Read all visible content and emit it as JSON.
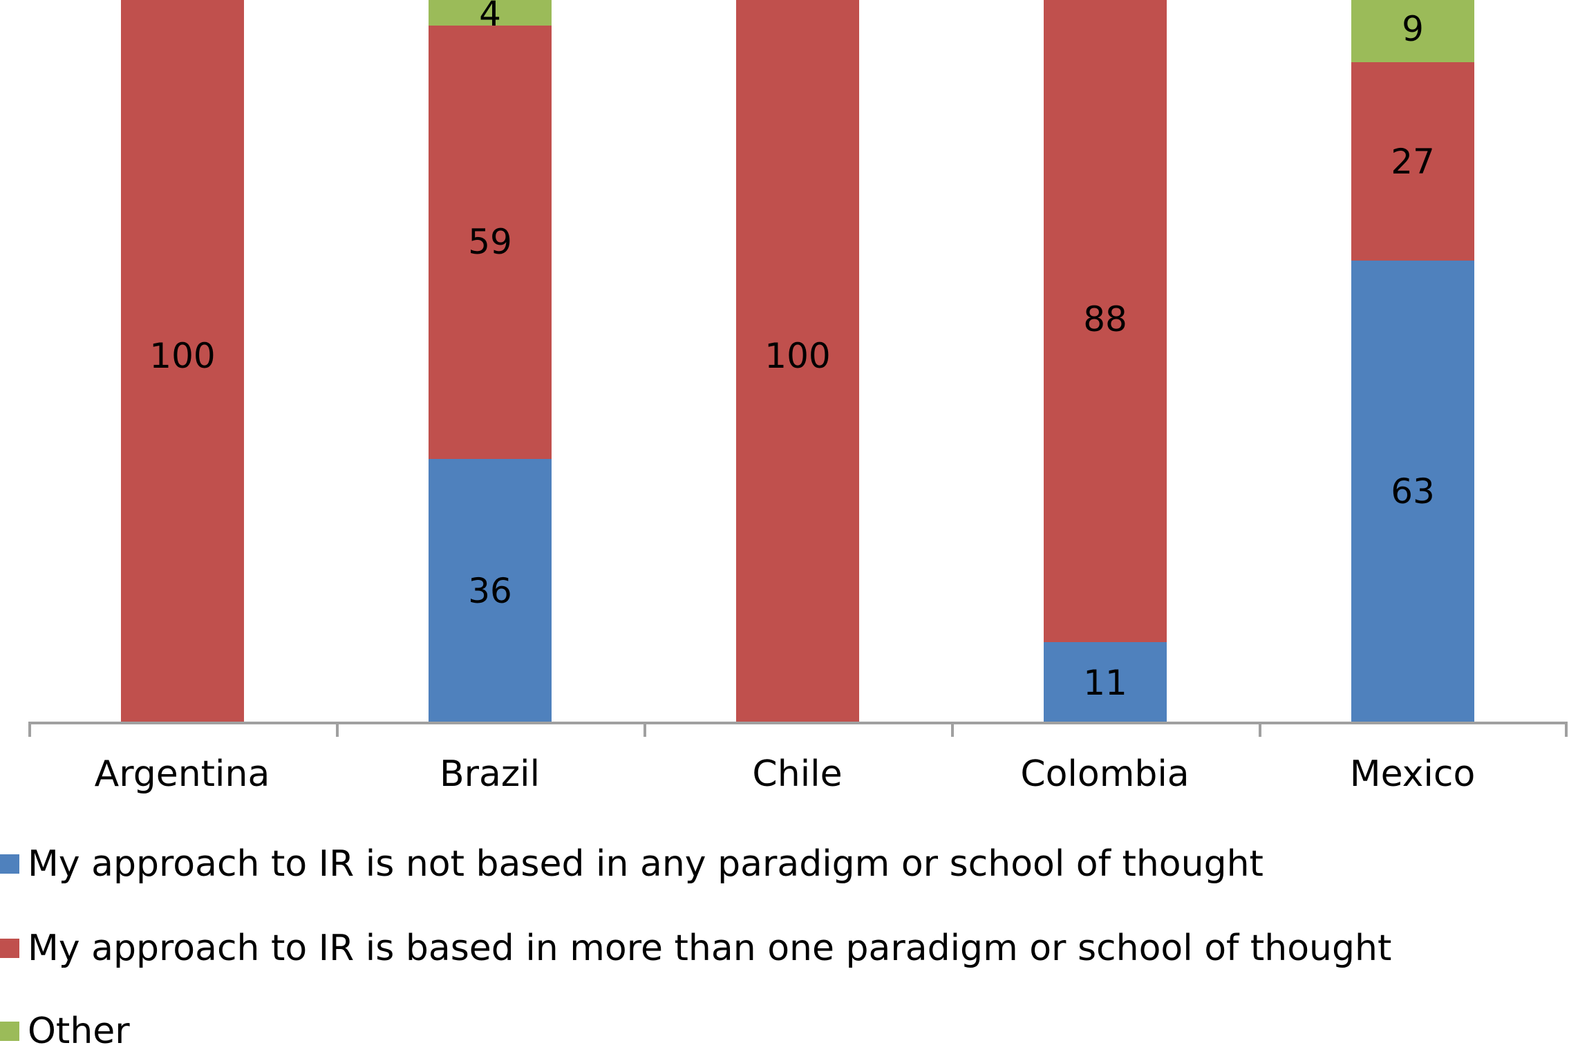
{
  "chart_data": {
    "type": "bar",
    "stacked": true,
    "title": "",
    "xlabel": "",
    "ylabel": "",
    "ylim": [
      0,
      100
    ],
    "grid": false,
    "legend_position": "bottom",
    "categories": [
      "Argentina",
      "Brazil",
      "Chile",
      "Colombia",
      "Mexico"
    ],
    "series": [
      {
        "name": "My approach to IR is not based in any paradigm or school of thought",
        "color": "#4F81BD",
        "values": [
          0,
          36,
          0,
          11,
          63
        ]
      },
      {
        "name": "My approach to IR is based in more than one paradigm or school of thought",
        "color": "#C0504D",
        "values": [
          100,
          59,
          100,
          88,
          27
        ]
      },
      {
        "name": "Other",
        "color": "#9BBB59",
        "values": [
          0,
          4,
          0,
          0,
          9
        ]
      }
    ]
  },
  "labels": {
    "categories": [
      "Argentina",
      "Brazil",
      "Chile",
      "Colombia",
      "Mexico"
    ],
    "legend": [
      "My approach to IR is not based in any paradigm or school of thought",
      "My approach to IR is based in more than one paradigm or school of thought",
      "Other"
    ]
  },
  "colors": {
    "blue": "#4F81BD",
    "red": "#C0504D",
    "green": "#9BBB59",
    "axis": "#A0A0A0"
  }
}
